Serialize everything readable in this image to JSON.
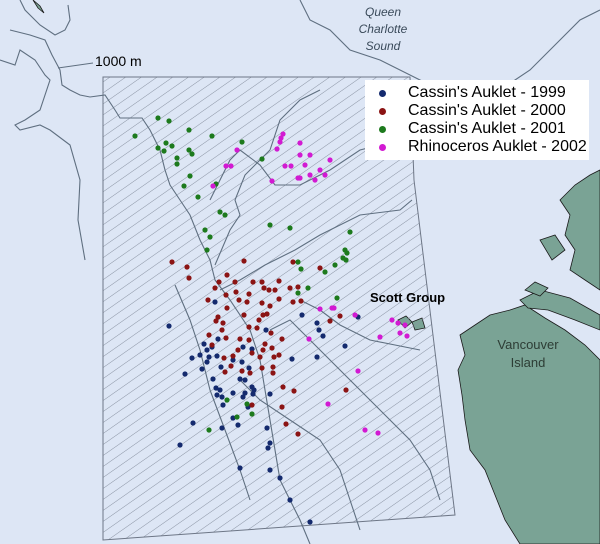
{
  "labels": {
    "water_body": [
      "Queen",
      "Charlotte",
      "Sound"
    ],
    "depth_contour": "1000 m",
    "scott_group": "Scott Group",
    "vancouver_island": [
      "Vancouver",
      "Island"
    ]
  },
  "legend": {
    "placement": "top-right",
    "items": [
      {
        "label": "Cassin's Auklet - 1999",
        "color": "#142a6e"
      },
      {
        "label": "Cassin's Auklet - 2000",
        "color": "#8b1414"
      },
      {
        "label": "Cassin's Auklet - 2001",
        "color": "#1d7a1d"
      },
      {
        "label": "Rhinoceros Auklet - 2002",
        "color": "#d21ad2"
      }
    ]
  },
  "colors": {
    "water": "#dde6f5",
    "land": "#7aa395",
    "contour": "#5f6f80",
    "hatch": "#8a93a3"
  }
}
